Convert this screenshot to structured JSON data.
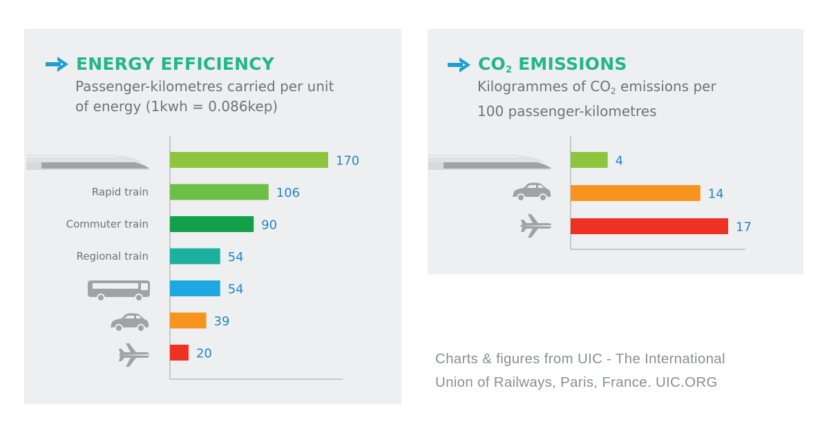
{
  "energy": {
    "title": "ENERGY EFFICIENCY",
    "subtitle_line1": "Passenger-kilometres carried per unit",
    "subtitle_line2": "of energy (1kwh = 0.086kep)"
  },
  "co2": {
    "title_prefix": "CO",
    "title_sub": "2",
    "title_suffix": " EMISSIONS",
    "subtitle_a": "Kilogrammes of CO",
    "subtitle_sub": "2",
    "subtitle_b": " emissions per",
    "subtitle_line2": "100 passenger-kilometres"
  },
  "credit": {
    "line1": "Charts & figures from UIC - The International",
    "line2": "Union of Railways, Paris, France.  UIC.ORG"
  },
  "colors": {
    "title": "#23b58b",
    "arrow": "#1f9fcf",
    "value": "#1f87c2",
    "label": "#6d7378",
    "icon": "#9ea3a7",
    "axis": "#b7bbbe"
  },
  "chart_data": [
    {
      "type": "bar",
      "orientation": "horizontal",
      "title": "ENERGY EFFICIENCY",
      "subtitle": "Passenger-kilometres carried per unit of energy (1kwh = 0.086kep)",
      "categories": [
        {
          "label": "",
          "icon": "high-speed-train-icon",
          "value": 170,
          "color": "#8cc63f"
        },
        {
          "label": "Rapid train",
          "icon": "",
          "value": 106,
          "color": "#6cbf47"
        },
        {
          "label": "Commuter train",
          "icon": "",
          "value": 90,
          "color": "#13a04a"
        },
        {
          "label": "Regional train",
          "icon": "",
          "value": 54,
          "color": "#1cb0a0"
        },
        {
          "label": "",
          "icon": "bus-icon",
          "value": 54,
          "color": "#1ea8e1"
        },
        {
          "label": "",
          "icon": "car-icon",
          "value": 39,
          "color": "#f7941d"
        },
        {
          "label": "",
          "icon": "airplane-icon",
          "value": 20,
          "color": "#ee3123"
        }
      ],
      "xlim": [
        0,
        170
      ],
      "grid": false,
      "legend": "none"
    },
    {
      "type": "bar",
      "orientation": "horizontal",
      "title": "CO2 EMISSIONS",
      "subtitle": "Kilogrammes of CO2 emissions per 100 passenger-kilometres",
      "categories": [
        {
          "label": "",
          "icon": "high-speed-train-icon",
          "value": 4,
          "color": "#8cc63f"
        },
        {
          "label": "",
          "icon": "car-icon",
          "value": 14,
          "color": "#f7941d"
        },
        {
          "label": "",
          "icon": "airplane-icon",
          "value": 17,
          "color": "#ee3123"
        }
      ],
      "xlim": [
        0,
        17
      ],
      "grid": false,
      "legend": "none"
    }
  ]
}
